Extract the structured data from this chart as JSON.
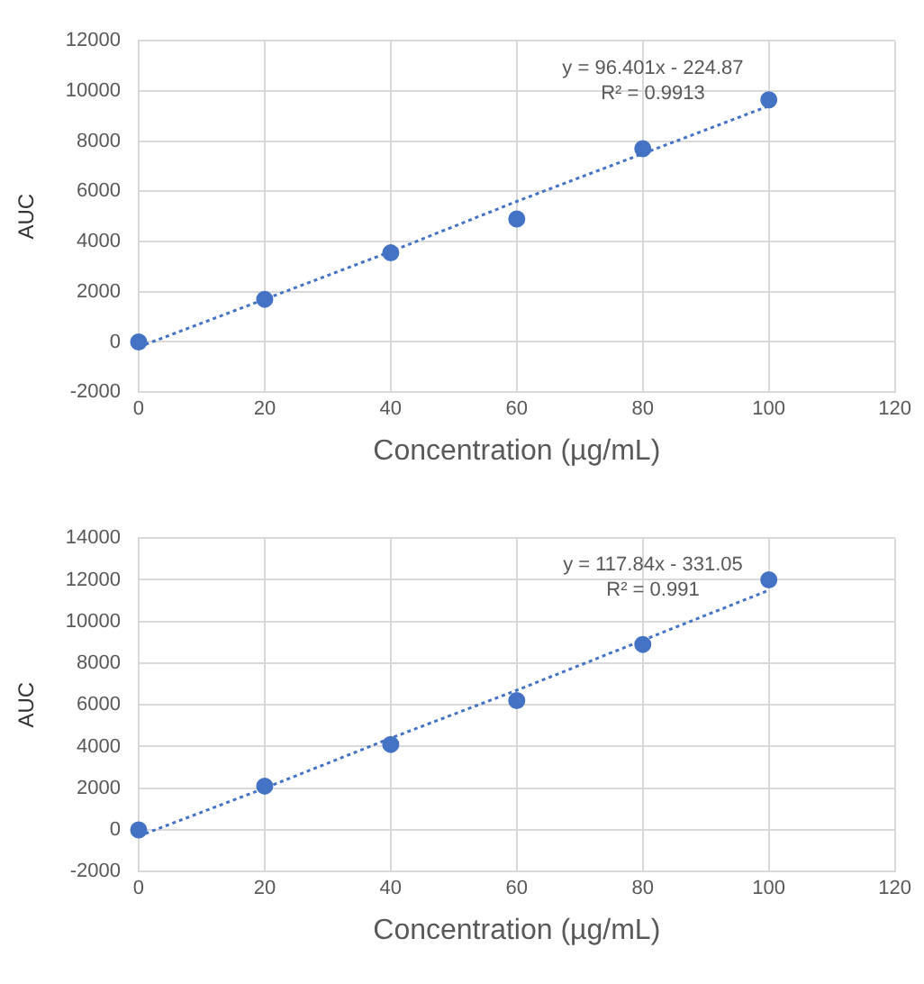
{
  "chart_data": [
    {
      "type": "scatter",
      "xlabel": "Concentration (µg/mL)",
      "ylabel": "AUC",
      "x": [
        0,
        20,
        40,
        60,
        80,
        100
      ],
      "series": [
        {
          "color": "#4472c4",
          "values": [
            0,
            1700,
            3550,
            4900,
            7700,
            9650
          ]
        },
        {
          "type": "line",
          "color": "#4472c4",
          "values": [
            -200,
            1700,
            3600,
            5600,
            7500,
            9400
          ],
          "line_style": "dotted",
          "marker": "none"
        }
      ],
      "xlim": [
        0,
        120
      ],
      "xticks": [
        0,
        20,
        40,
        60,
        80,
        100,
        120
      ],
      "ylim": [
        -2000,
        12000
      ],
      "yticks": [
        -2000,
        0,
        2000,
        4000,
        6000,
        8000,
        10000,
        12000
      ],
      "annotations": [
        "y = 96.401x - 224.87",
        "R² = 0.9913"
      ],
      "grid": true,
      "legend": false,
      "marker": "circle"
    },
    {
      "type": "scatter",
      "xlabel": "Concentration (µg/mL)",
      "ylabel": "AUC",
      "x": [
        0,
        20,
        40,
        60,
        80,
        100
      ],
      "series": [
        {
          "color": "#4472c4",
          "values": [
            0,
            2100,
            4100,
            6200,
            8900,
            12000
          ]
        },
        {
          "type": "line",
          "color": "#4472c4",
          "values": [
            -300,
            2000,
            4400,
            6700,
            9100,
            11500
          ],
          "line_style": "dotted",
          "marker": "none"
        }
      ],
      "xlim": [
        0,
        120
      ],
      "xticks": [
        0,
        20,
        40,
        60,
        80,
        100,
        120
      ],
      "ylim": [
        -2000,
        14000
      ],
      "yticks": [
        -2000,
        0,
        2000,
        4000,
        6000,
        8000,
        10000,
        12000,
        14000
      ],
      "annotations": [
        "y = 117.84x - 331.05",
        "R² = 0.991"
      ],
      "grid": true,
      "legend": false,
      "marker": "circle"
    }
  ]
}
